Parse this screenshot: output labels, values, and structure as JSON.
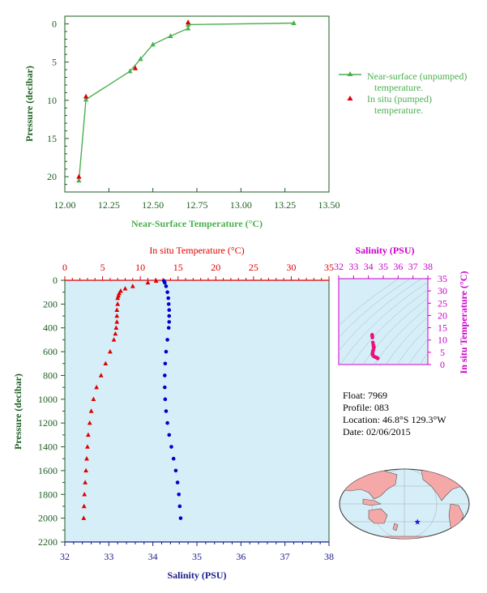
{
  "colors": {
    "green": "#4caf50",
    "axis_green": "#1b5e20",
    "red": "#dd0000",
    "blue": "#0000cc",
    "magenta": "#cc00cc",
    "pink": "#e8127a",
    "navy": "#1a1a8c",
    "panel_bg": "#d6eef8",
    "land": "#f4a8a8"
  },
  "chart_data": [
    {
      "type": "line",
      "xlabel": "Near-Surface Temperature (°C)",
      "ylabel": "Pressure (decibar)",
      "xlim": [
        12.0,
        13.5
      ],
      "ylim": [
        22,
        -1
      ],
      "xticks": [
        "12.00",
        "12.25",
        "12.50",
        "12.75",
        "13.00",
        "13.25",
        "13.50"
      ],
      "yticks": [
        "0",
        "5",
        "10",
        "15",
        "20"
      ],
      "legend": {
        "placement": "right",
        "entries": [
          {
            "line1": "Near-surface (unpumped)",
            "line2": "temperature."
          },
          {
            "line1": "In situ (pumped)",
            "line2": "temperature."
          }
        ]
      },
      "series": [
        {
          "name": "Near-surface (unpumped) temperature.",
          "marker": "triangle",
          "x": [
            13.3,
            12.7,
            12.7,
            12.6,
            12.5,
            12.43,
            12.37,
            12.12,
            12.08
          ],
          "y": [
            -0.1,
            0.1,
            0.6,
            1.6,
            2.7,
            4.6,
            6.2,
            9.9,
            20.5
          ]
        },
        {
          "name": "In situ (pumped) temperature.",
          "marker": "triangle",
          "x": [
            12.7,
            12.4,
            12.12,
            12.08
          ],
          "y": [
            -0.2,
            5.8,
            9.5,
            20.0
          ]
        }
      ]
    },
    {
      "type": "line",
      "title_top": "In situ Temperature (°C)",
      "xlabel_bottom": "Salinity (PSU)",
      "ylabel": "Pressure (decibar)",
      "temp_lim": [
        0,
        35
      ],
      "sal_lim": [
        32,
        38
      ],
      "ylim": [
        2200,
        0
      ],
      "temp_ticks": [
        "0",
        "5",
        "10",
        "15",
        "20",
        "25",
        "30",
        "35"
      ],
      "sal_ticks": [
        "32",
        "33",
        "34",
        "35",
        "36",
        "37",
        "38"
      ],
      "yticks": [
        "0",
        "200",
        "400",
        "600",
        "800",
        "1000",
        "1200",
        "1400",
        "1600",
        "1800",
        "2000",
        "2200"
      ],
      "temperature": {
        "marker": "triangle",
        "p": [
          5,
          20,
          50,
          70,
          90,
          110,
          130,
          150,
          200,
          250,
          300,
          350,
          400,
          450,
          500,
          600,
          700,
          800,
          900,
          1000,
          1100,
          1200,
          1300,
          1400,
          1500,
          1600,
          1700,
          1800,
          1900,
          2000
        ],
        "t": [
          12.1,
          11.0,
          9.0,
          8.0,
          7.4,
          7.2,
          7.1,
          7.0,
          7.0,
          6.9,
          6.9,
          6.9,
          6.8,
          6.7,
          6.5,
          6.0,
          5.4,
          4.8,
          4.2,
          3.8,
          3.5,
          3.3,
          3.1,
          3.0,
          2.9,
          2.8,
          2.7,
          2.6,
          2.55,
          2.5
        ]
      },
      "salinity": {
        "marker": "dot",
        "p": [
          5,
          20,
          50,
          100,
          150,
          200,
          250,
          300,
          350,
          400,
          500,
          600,
          700,
          800,
          900,
          1000,
          1100,
          1200,
          1300,
          1400,
          1500,
          1600,
          1700,
          1800,
          1900,
          2000
        ],
        "s": [
          34.25,
          34.27,
          34.3,
          34.33,
          34.35,
          34.36,
          34.37,
          34.37,
          34.37,
          34.36,
          34.33,
          34.3,
          34.28,
          34.27,
          34.27,
          34.28,
          34.3,
          34.33,
          34.37,
          34.42,
          34.47,
          34.52,
          34.56,
          34.59,
          34.61,
          34.63
        ]
      }
    },
    {
      "type": "scatter",
      "title": "Salinity (PSU)",
      "ylabel": "In situ Temperature (°C)",
      "xlim": [
        32,
        38
      ],
      "ylim": [
        0,
        35
      ],
      "xticks": [
        "32",
        "33",
        "34",
        "35",
        "36",
        "37",
        "38"
      ],
      "yticks": [
        "0",
        "5",
        "10",
        "15",
        "20",
        "25",
        "30",
        "35"
      ],
      "points": {
        "s": [
          34.25,
          34.27,
          34.3,
          34.33,
          34.35,
          34.36,
          34.37,
          34.36,
          34.33,
          34.3,
          34.28,
          34.27,
          34.3,
          34.37,
          34.47,
          34.56,
          34.61,
          34.63
        ],
        "t": [
          12.1,
          11.0,
          9.0,
          8.0,
          7.4,
          7.1,
          7.0,
          6.8,
          6.0,
          5.4,
          4.8,
          4.2,
          3.8,
          3.3,
          3.0,
          2.8,
          2.6,
          2.5
        ]
      }
    }
  ],
  "info": {
    "float": "Float: 7969",
    "profile": "Profile: 083",
    "location": "Location: 46.8°S 129.3°W",
    "date": "Date: 02/06/2015"
  },
  "map": {
    "marker": "star",
    "lat": -46.8,
    "lon": -129.3
  }
}
